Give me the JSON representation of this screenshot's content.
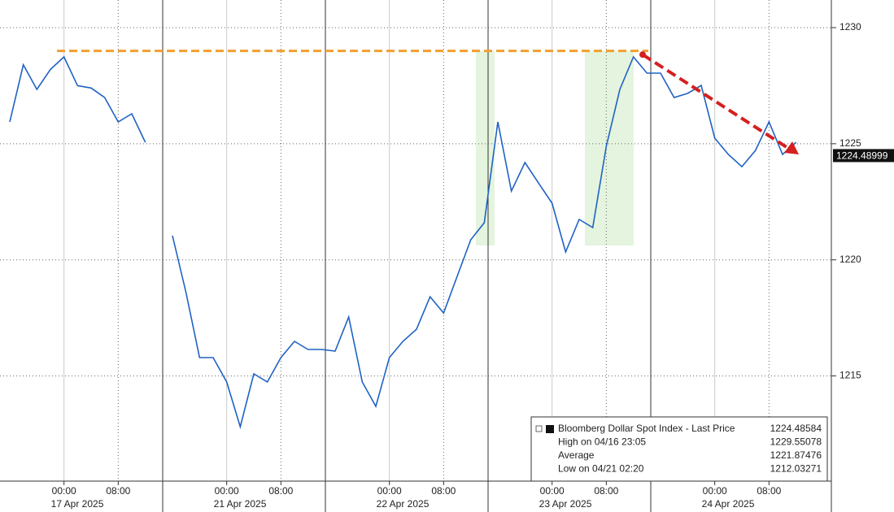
{
  "chart_data": {
    "type": "line",
    "categories": [
      null,
      null,
      null,
      null,
      "00:00",
      null,
      null,
      null,
      "08:00",
      null,
      null,
      null,
      null,
      null,
      null,
      null,
      "00:00",
      null,
      null,
      null,
      "08:00",
      null,
      null,
      null,
      null,
      null,
      null,
      null,
      "00:00",
      null,
      null,
      null,
      "08:00",
      null,
      null,
      null,
      null,
      null,
      null,
      null,
      "00:00",
      null,
      null,
      null,
      "08:00",
      null,
      null,
      null,
      null,
      null,
      null,
      null,
      "00:00",
      null,
      null,
      null,
      "08:00",
      null,
      null
    ],
    "category_dates": [
      null,
      null,
      null,
      null,
      "17 Apr 2025",
      null,
      null,
      null,
      null,
      null,
      null,
      null,
      null,
      null,
      null,
      null,
      "21 Apr 2025",
      null,
      null,
      null,
      null,
      null,
      null,
      null,
      null,
      null,
      null,
      null,
      "22 Apr 2025",
      null,
      null,
      null,
      null,
      null,
      null,
      null,
      null,
      null,
      null,
      null,
      "23 Apr 2025",
      null,
      null,
      null,
      null,
      null,
      null,
      null,
      null,
      null,
      null,
      null,
      "24 Apr 2025",
      null,
      null,
      null,
      null,
      null,
      null
    ],
    "series": [
      {
        "name": "Bloomberg Dollar Spot Index - Last Price",
        "color": "#1f62c4",
        "values": [
          1225.94,
          1228.4,
          1227.34,
          1228.2,
          1228.74,
          1227.5,
          1227.4,
          1226.99,
          1225.94,
          1226.29,
          1225.06,
          null,
          1221.04,
          1218.59,
          1215.79,
          1215.79,
          1214.74,
          1212.81,
          1215.09,
          1214.74,
          1215.79,
          1216.49,
          1216.14,
          1216.14,
          1216.07,
          1217.54,
          1214.74,
          1213.69,
          1215.79,
          1216.49,
          1217.01,
          1218.41,
          1217.71,
          1219.29,
          1220.86,
          1221.6,
          1225.94,
          1222.96,
          1224.19,
          1223.31,
          1222.44,
          1220.34,
          1221.74,
          1221.39,
          1224.89,
          1227.34,
          1228.74,
          1228.04,
          1228.04,
          1226.99,
          1227.17,
          1227.51,
          1225.24,
          1224.54,
          1224.01,
          1224.71,
          1225.94,
          1224.54,
          1225.06
        ]
      }
    ],
    "ylim": [
      1210.47,
      1231.19
    ],
    "yticks": [
      1215,
      1220,
      1225,
      1230
    ],
    "grid": true,
    "last_price": 1224.48999,
    "resistance_level": 1229,
    "trend_arrow": {
      "start": 1228.84,
      "end": 1224.54,
      "color": "#d42020"
    },
    "highlight_bands": [
      {
        "low": 1220.62,
        "high": 1229,
        "color": "#dff2d8"
      },
      {
        "low": 1220.62,
        "high": 1229,
        "color": "#dff2d8"
      }
    ],
    "legend": [
      {
        "label": "Bloomberg Dollar Spot Index - Last Price",
        "value": 1224.48584
      },
      {
        "label": "High on 04/16 23:05",
        "value": 1229.55078
      },
      {
        "label": "Average",
        "value": 1221.87476
      },
      {
        "label": "Low on 04/21 02:20",
        "value": 1212.03271
      }
    ]
  }
}
